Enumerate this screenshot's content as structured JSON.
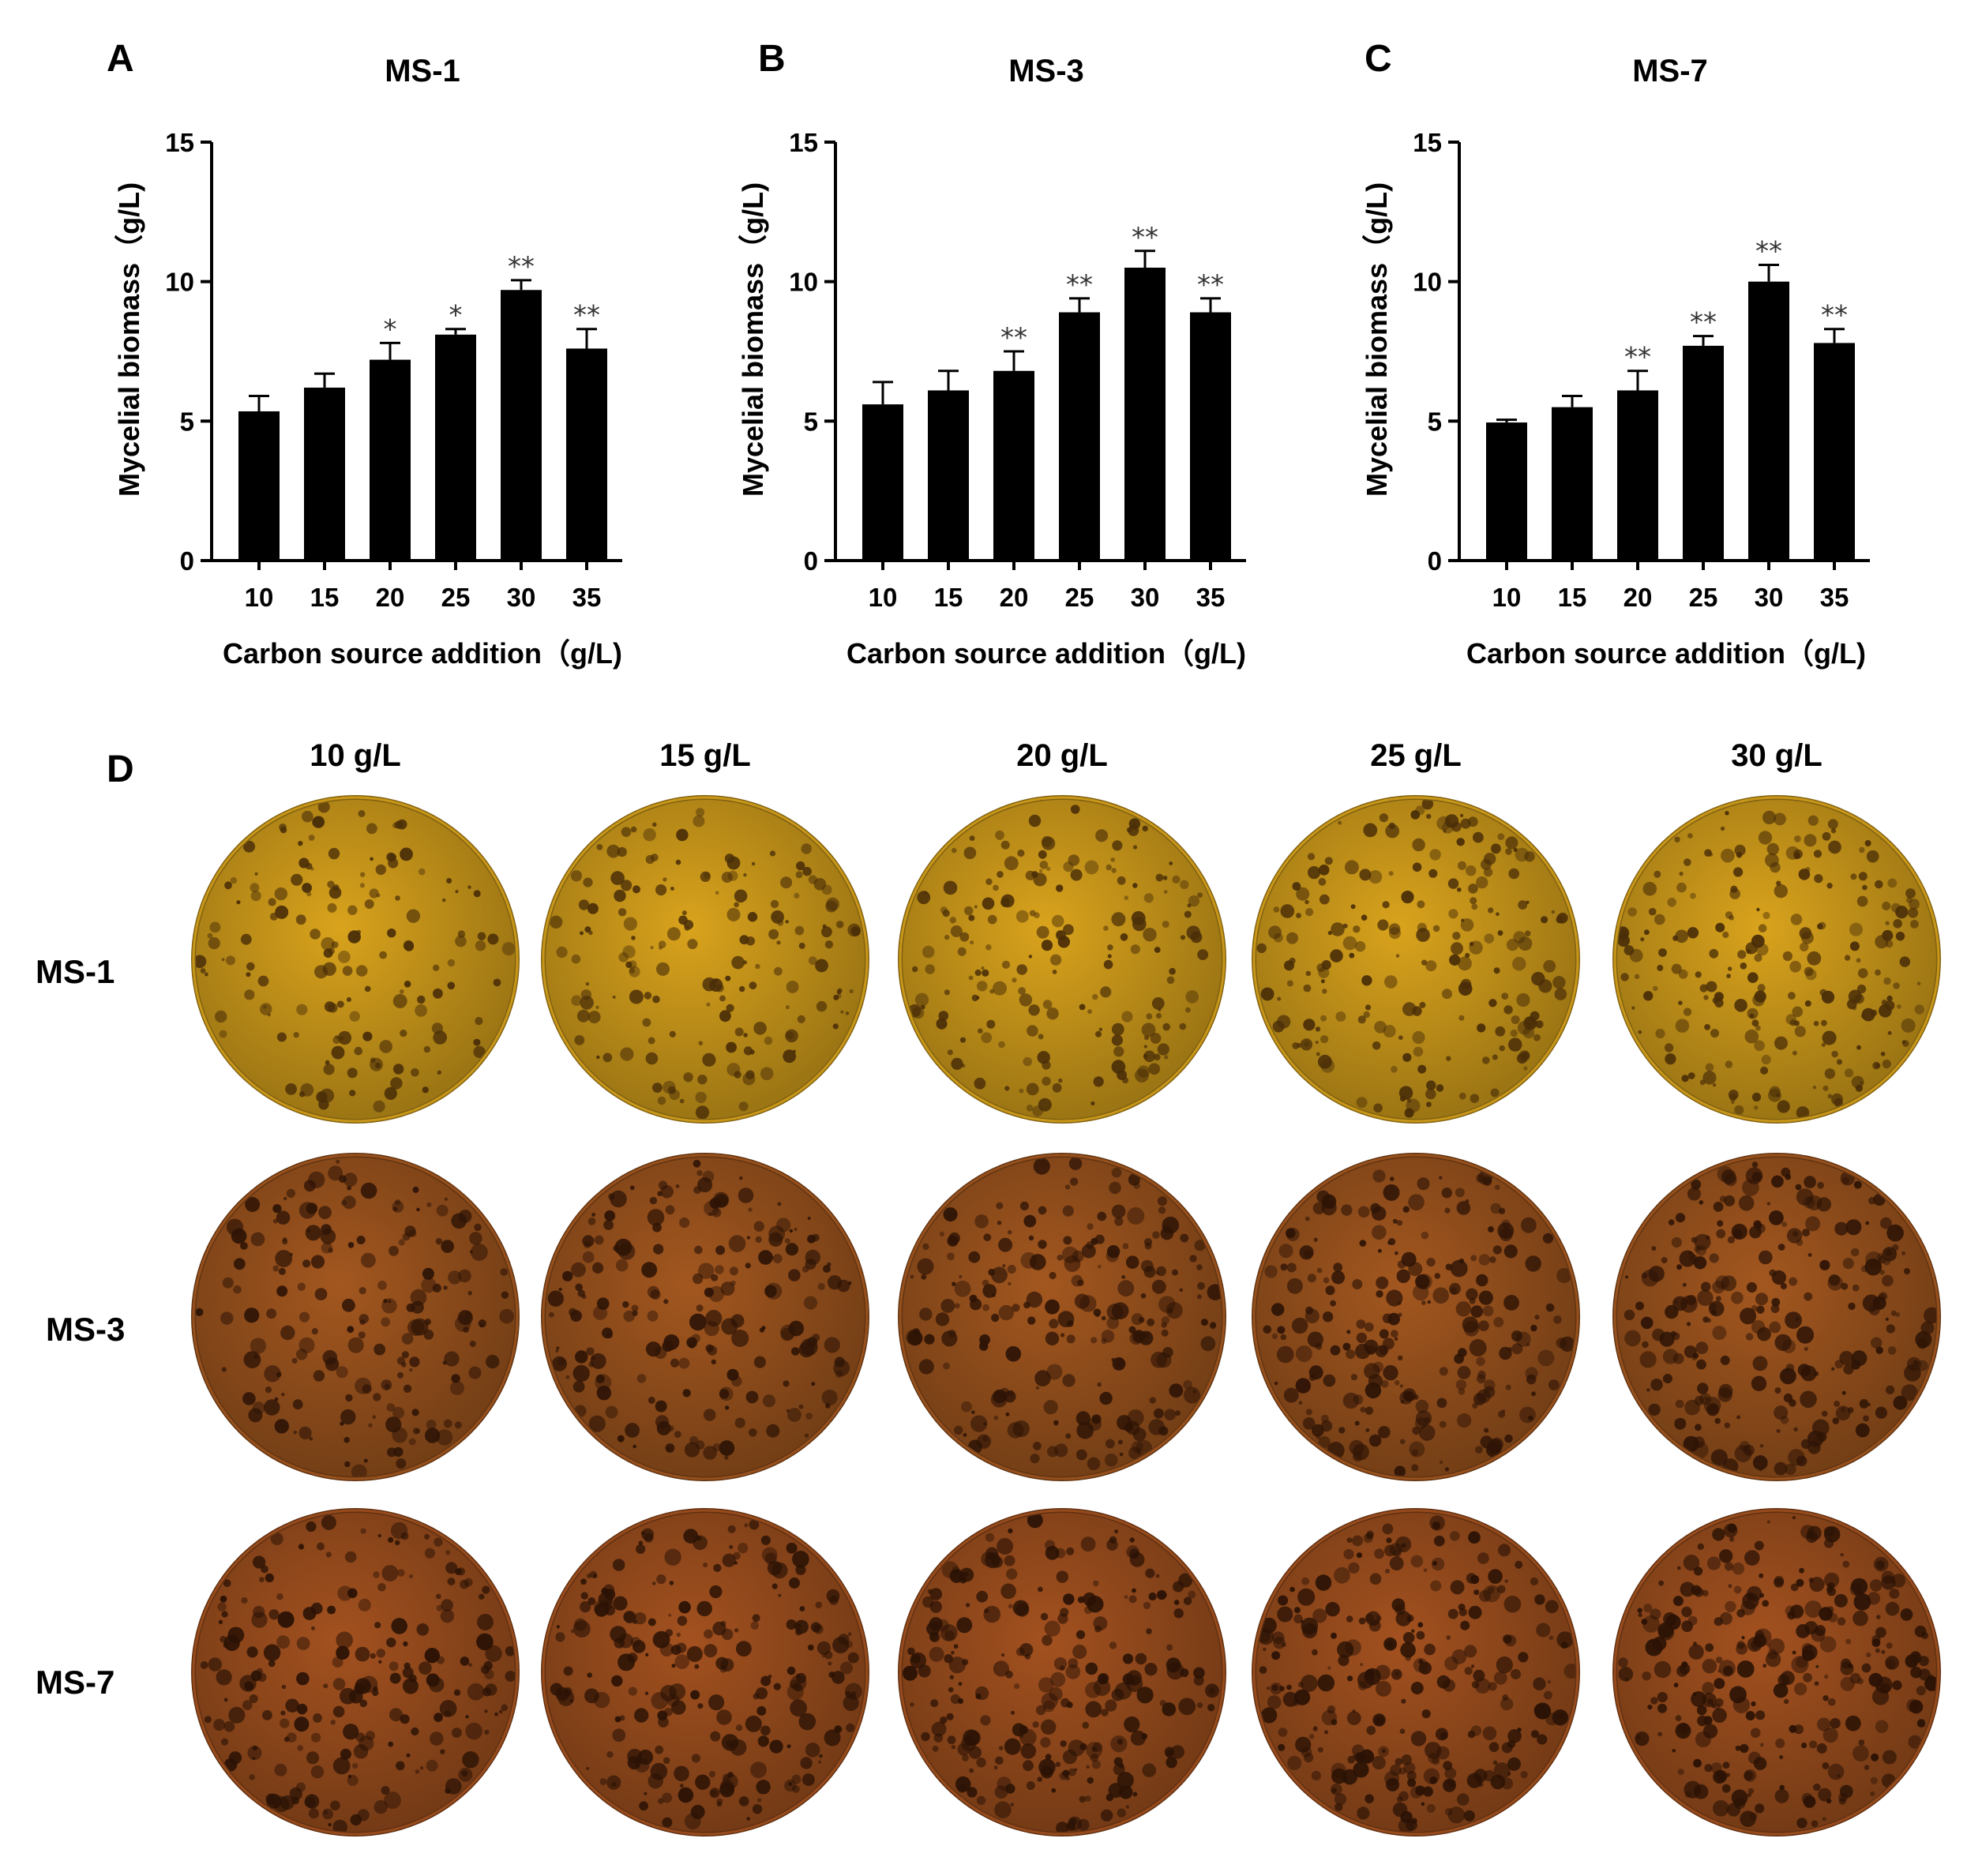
{
  "panels": {
    "A": "A",
    "B": "B",
    "C": "C",
    "D": "D"
  },
  "chart_data": [
    {
      "type": "bar",
      "panel": "A",
      "title": "MS-1",
      "xlabel": "Carbon source addition（g/L)",
      "ylabel": "Mycelial biomass（g/L)",
      "categories": [
        "10",
        "15",
        "20",
        "25",
        "30",
        "35"
      ],
      "values": [
        5.35,
        6.2,
        7.2,
        8.1,
        9.7,
        7.6
      ],
      "errors": [
        0.55,
        0.5,
        0.6,
        0.2,
        0.35,
        0.7
      ],
      "significance": [
        "",
        "",
        "*",
        "*",
        "**",
        "**"
      ],
      "ylim": [
        0,
        15
      ],
      "yticks": [
        "0",
        "5",
        "10",
        "15"
      ],
      "color": "#000000"
    },
    {
      "type": "bar",
      "panel": "B",
      "title": "MS-3",
      "xlabel": "Carbon source addition（g/L)",
      "ylabel": "Mycelial biomass（g/L)",
      "categories": [
        "10",
        "15",
        "20",
        "25",
        "30",
        "35"
      ],
      "values": [
        5.6,
        6.1,
        6.8,
        8.9,
        10.5,
        8.9
      ],
      "errors": [
        0.8,
        0.7,
        0.7,
        0.5,
        0.6,
        0.5
      ],
      "significance": [
        "",
        "",
        "**",
        "**",
        "**",
        "**"
      ],
      "ylim": [
        0,
        15
      ],
      "yticks": [
        "0",
        "5",
        "10",
        "15"
      ],
      "color": "#000000"
    },
    {
      "type": "bar",
      "panel": "C",
      "title": "MS-7",
      "xlabel": "Carbon source addition（g/L)",
      "ylabel": "Mycelial biomass（g/L)",
      "categories": [
        "10",
        "15",
        "20",
        "25",
        "30",
        "35"
      ],
      "values": [
        4.95,
        5.5,
        6.1,
        7.7,
        10.0,
        7.8
      ],
      "errors": [
        0.1,
        0.4,
        0.7,
        0.35,
        0.6,
        0.5
      ],
      "significance": [
        "",
        "",
        "**",
        "**",
        "**",
        "**"
      ],
      "ylim": [
        0,
        15
      ],
      "yticks": [
        "0",
        "5",
        "10",
        "15"
      ],
      "color": "#000000"
    }
  ],
  "plates": {
    "columns": [
      "10 g/L",
      "15 g/L",
      "20 g/L",
      "25 g/L",
      "30 g/L"
    ],
    "rows": [
      {
        "label": "MS-1",
        "medium_color": "#b88a18",
        "colony_color": "#4a2e08"
      },
      {
        "label": "MS-3",
        "medium_color": "#8a4a1a",
        "colony_color": "#2e1406"
      },
      {
        "label": "MS-7",
        "medium_color": "#8a451a",
        "colony_color": "#2a1205"
      }
    ]
  }
}
